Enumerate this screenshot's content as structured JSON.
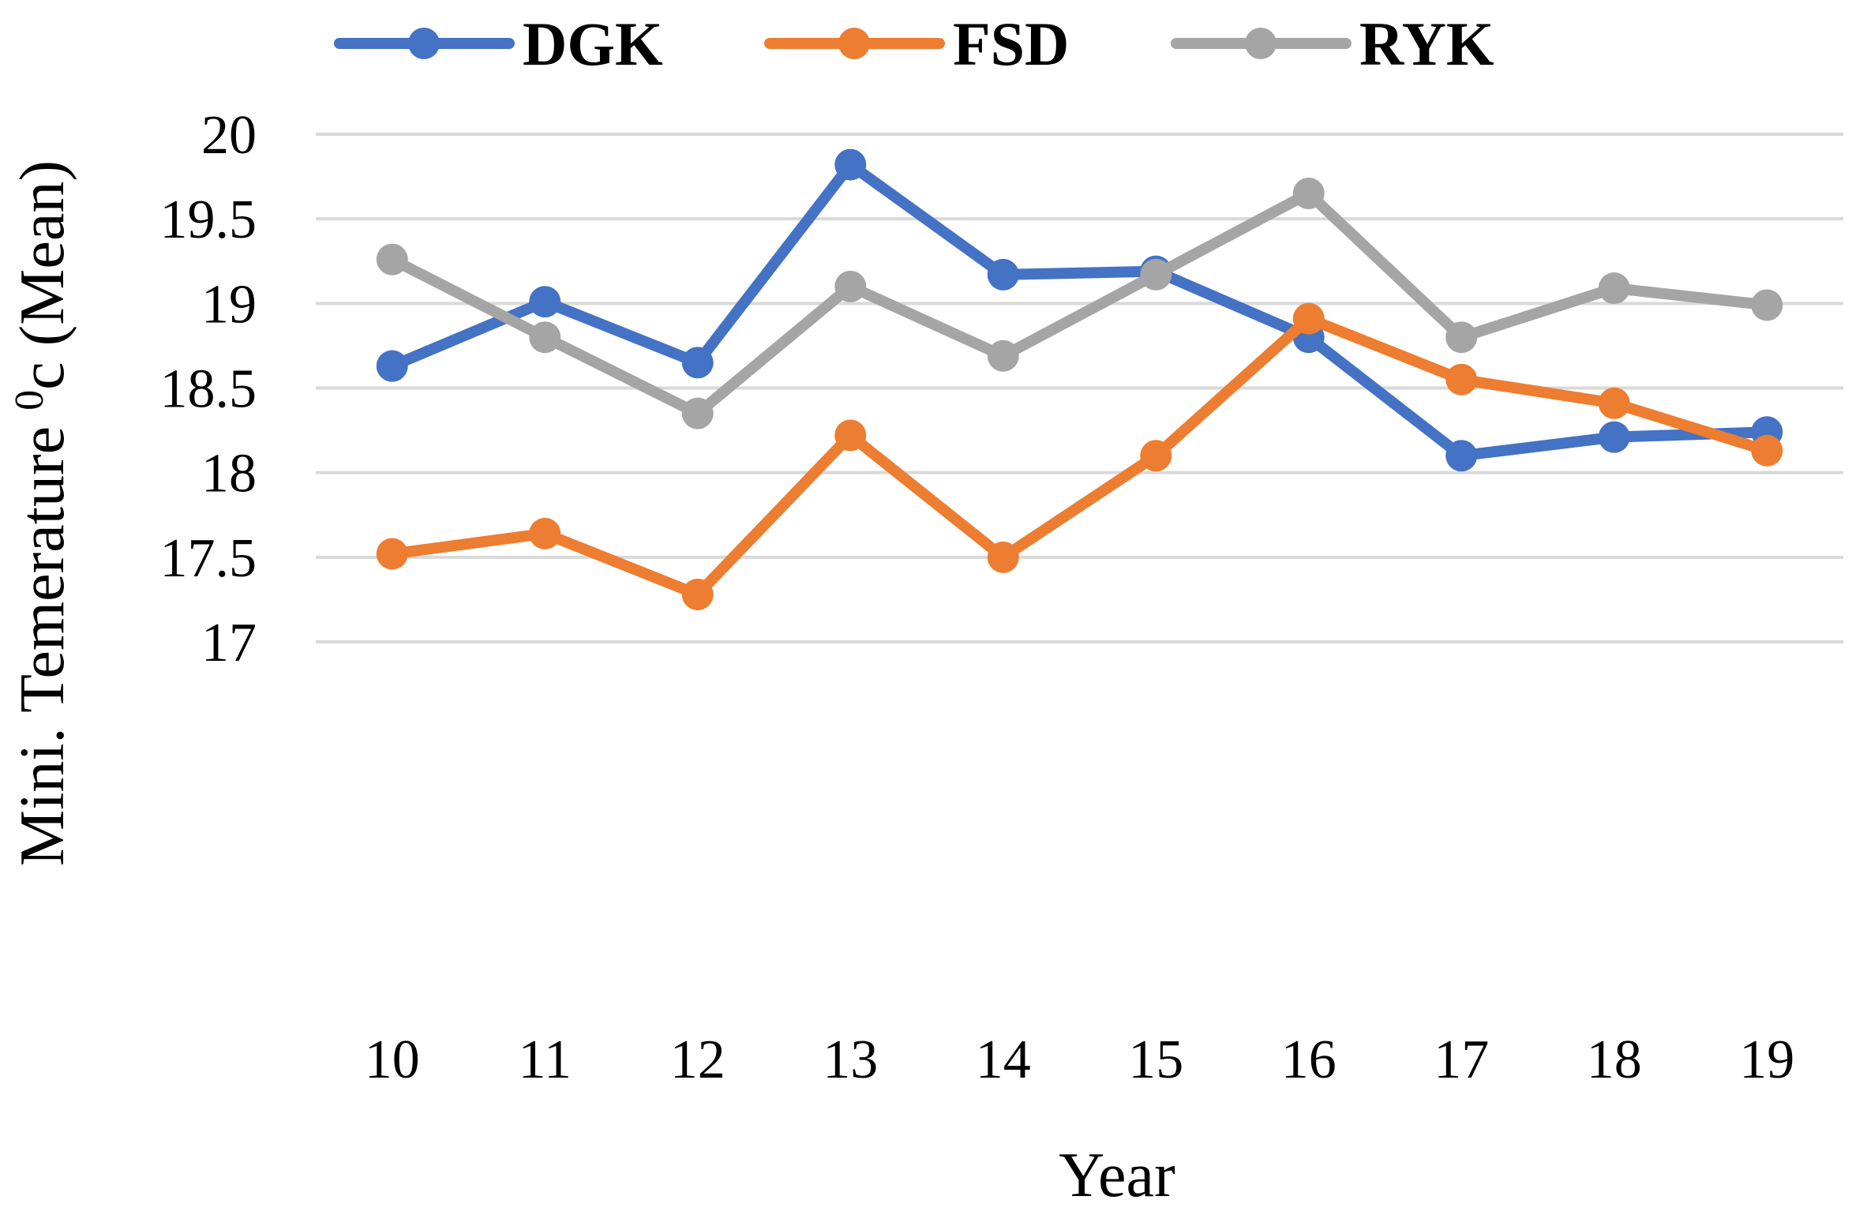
{
  "chart_data": {
    "type": "line",
    "title": "",
    "xlabel": "Year",
    "ylabel": {
      "prefix": "Mini. Temerature ",
      "superscript": "0",
      "suffix": "c (Mean)"
    },
    "x": [
      10,
      11,
      12,
      13,
      14,
      15,
      16,
      17,
      18,
      19
    ],
    "x_tick_labels": [
      "10",
      "11",
      "12",
      "13",
      "14",
      "15",
      "16",
      "17",
      "18",
      "19"
    ],
    "ylim": [
      17,
      20
    ],
    "y_ticks": [
      17,
      17.5,
      18,
      18.5,
      19,
      19.5,
      20
    ],
    "y_tick_labels": [
      "17",
      "17.5",
      "18",
      "18.5",
      "19",
      "19.5",
      "20"
    ],
    "grid": true,
    "legend_position": "top",
    "series": [
      {
        "name": "DGK",
        "color": "#4472C4",
        "values": [
          18.63,
          19.01,
          18.65,
          19.82,
          19.17,
          19.19,
          18.8,
          18.1,
          18.21,
          18.24
        ]
      },
      {
        "name": "FSD",
        "color": "#ED7D31",
        "values": [
          17.52,
          17.64,
          17.28,
          18.22,
          17.5,
          18.1,
          18.91,
          18.55,
          18.41,
          18.13
        ]
      },
      {
        "name": "RYK",
        "color": "#A5A5A5",
        "values": [
          19.26,
          18.8,
          18.35,
          19.1,
          18.69,
          19.17,
          19.65,
          18.8,
          19.09,
          18.99
        ]
      }
    ]
  }
}
